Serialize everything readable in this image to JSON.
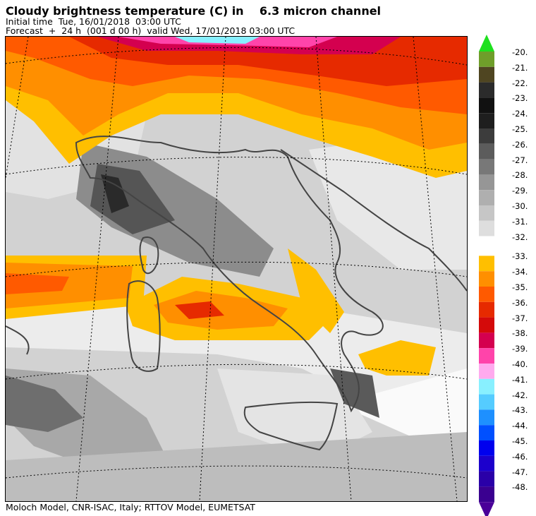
{
  "title": "Cloudy brightness temperature (C) in    6.3 micron channel",
  "subtitle_initial": "Initial time  Tue, 16/01/2018  03:00 UTC",
  "subtitle_forecast": "Forecast  +  24 h  (001 d 00 h)  valid Wed, 17/01/2018 03:00 UTC",
  "footer": "Moloch Model, CNR-ISAC, Italy; RTTOV Model, EUMETSAT",
  "colorbar": {
    "labels": [
      "-20.",
      "-21.",
      "-22.",
      "-23.",
      "-24.",
      "-25.",
      "-26.",
      "-27.",
      "-28.",
      "-29.",
      "-30.",
      "-31.",
      "-32.",
      "-33.",
      "-34.",
      "-35.",
      "-36.",
      "-37.",
      "-38.",
      "-39.",
      "-40.",
      "-41.",
      "-42.",
      "-43.",
      "-44.",
      "-45.",
      "-46.",
      "-47.",
      "-48."
    ],
    "colors": [
      "#6f9e2a",
      "#4f4521",
      "#2b2b2b",
      "#111111",
      "#1e1e1e",
      "#3c3c3c",
      "#5c5c5c",
      "#787878",
      "#969696",
      "#afafaf",
      "#c6c6c6",
      "#dedede",
      "#ffffff",
      "#ffbf00",
      "#ff8f00",
      "#ff5a00",
      "#e62a00",
      "#d40a0a",
      "#d4004f",
      "#ff44aa",
      "#ffaaee",
      "#88f0ff",
      "#55ccff",
      "#1e90ff",
      "#0050ff",
      "#0000ee",
      "#1c00cc",
      "#2a00a8",
      "#3a0090"
    ],
    "top_arrow_color": "#1ee01e",
    "bottom_arrow_color": "#4a0099"
  }
}
